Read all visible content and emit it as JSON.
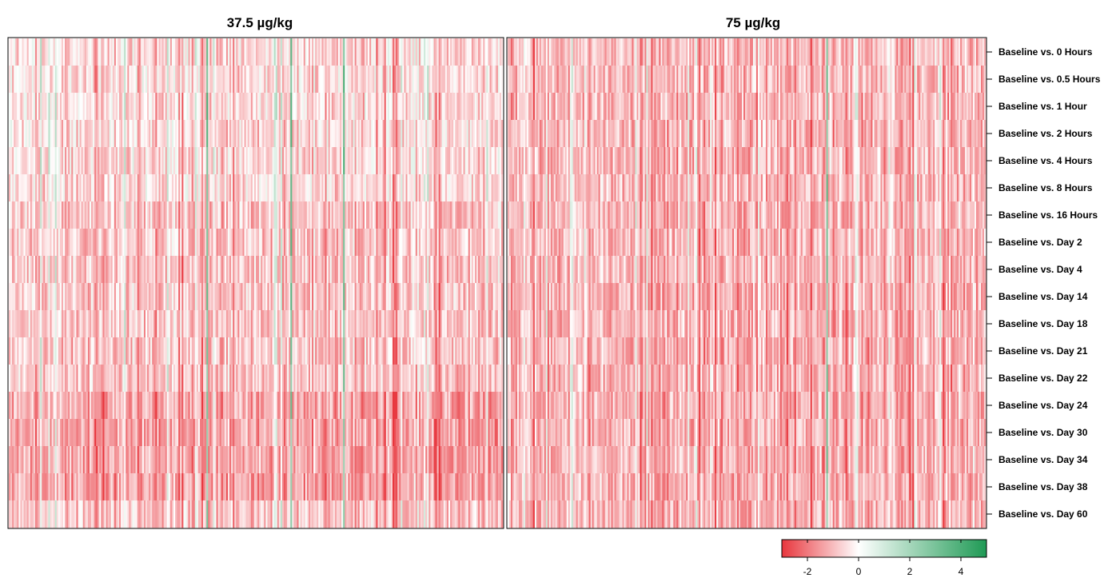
{
  "chart_data": {
    "type": "heatmap",
    "panels": [
      {
        "title": "37.5 µg/kg"
      },
      {
        "title": "75 µg/kg"
      }
    ],
    "row_labels": [
      "Baseline vs. 0 Hours",
      "Baseline vs. 0.5 Hours",
      "Baseline vs. 1 Hour",
      "Baseline vs. 2 Hours",
      "Baseline vs. 4 Hours",
      "Baseline vs. 8 Hours",
      "Baseline vs. 16 Hours",
      "Baseline vs. Day 2",
      "Baseline vs. Day 4",
      "Baseline vs. Day 14",
      "Baseline vs. Day 18",
      "Baseline vs. Day 21",
      "Baseline vs. Day 22",
      "Baseline vs. Day 24",
      "Baseline vs. Day 30",
      "Baseline vs. Day 34",
      "Baseline vs. Day 38",
      "Baseline vs. Day 60"
    ],
    "colorbar": {
      "range": [
        -3,
        5
      ],
      "ticks": [
        -2,
        0,
        2,
        4
      ],
      "tick_labels": [
        "-2",
        "0",
        "2",
        "4"
      ],
      "colors": {
        "low": "#e8363d",
        "mid": "#ffffff",
        "high": "#1f9a55"
      }
    },
    "columns_per_panel": 300
  }
}
